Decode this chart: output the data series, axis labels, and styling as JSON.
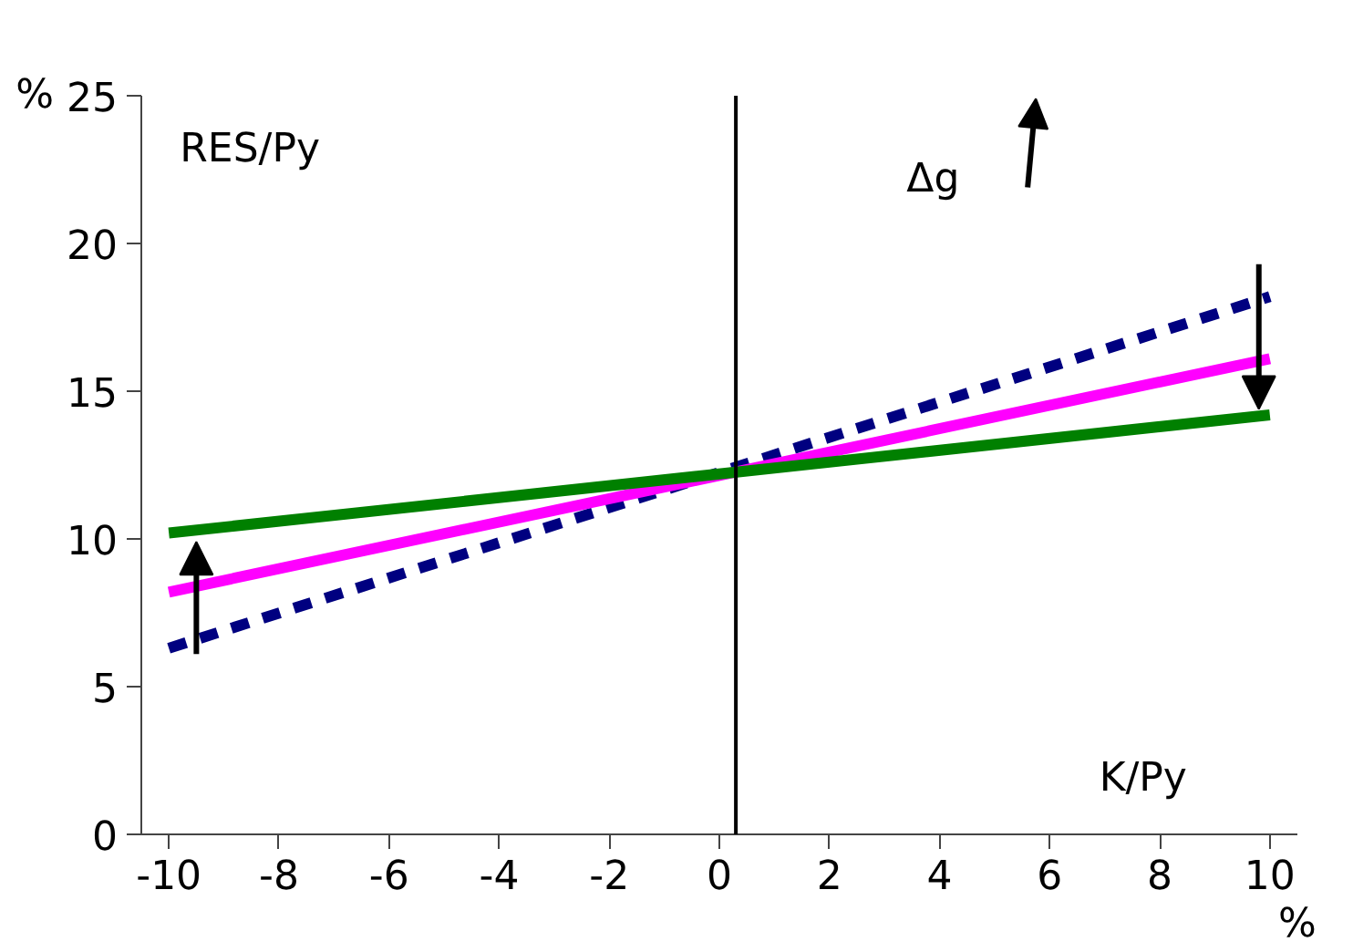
{
  "chart_data": {
    "type": "line",
    "x": [
      -10,
      10
    ],
    "series": [
      {
        "color": "#000080",
        "values": [
          6.3,
          18.2
        ],
        "line_style": "dashed"
      },
      {
        "color": "#ff00ff",
        "values": [
          8.2,
          16.1
        ],
        "line_style": "solid"
      },
      {
        "color": "#008000",
        "values": [
          10.2,
          14.2
        ],
        "line_style": "solid"
      }
    ],
    "xlabel": "%",
    "ylabel": "%",
    "annotations": [
      "RES/Py",
      "K/Py",
      "Δg"
    ],
    "xlim": [
      -10.5,
      10.5
    ],
    "ylim": [
      0,
      25
    ],
    "xticks": [
      -10,
      -8,
      -6,
      -4,
      -2,
      0,
      2,
      4,
      6,
      8,
      10
    ],
    "yticks": [
      0,
      5,
      10,
      15,
      20,
      25
    ],
    "ref_lines": [
      {
        "axis": "x",
        "value": 0.3,
        "color": "#000000"
      }
    ],
    "grid": false,
    "marker": "none"
  }
}
